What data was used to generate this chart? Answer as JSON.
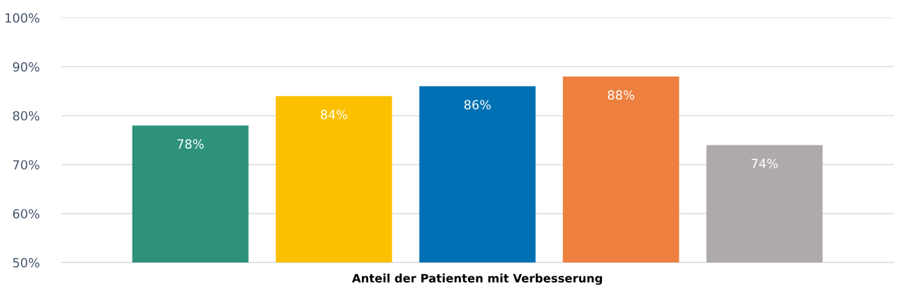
{
  "chart_data": {
    "type": "bar",
    "xlabel": "Anteil der Patienten mit Verbesserung",
    "categories": [
      null,
      null,
      null,
      null,
      null
    ],
    "values": [
      78,
      84,
      86,
      88,
      74
    ],
    "colors": [
      "#2e927a",
      "#fbc000",
      "#0070b4",
      "#ed7f3f",
      "#afaaaa"
    ],
    "value_labels": [
      "78%",
      "84%",
      "86%",
      "88%",
      "74%"
    ],
    "ylim": [
      50,
      100
    ],
    "yticks": [
      {
        "value": 50,
        "label": "50%"
      },
      {
        "value": 60,
        "label": "60%"
      },
      {
        "value": 70,
        "label": "70%"
      },
      {
        "value": 80,
        "label": "80%"
      },
      {
        "value": 90,
        "label": "90%"
      },
      {
        "value": 100,
        "label": "100%"
      }
    ],
    "grid": "y",
    "legend": false
  }
}
